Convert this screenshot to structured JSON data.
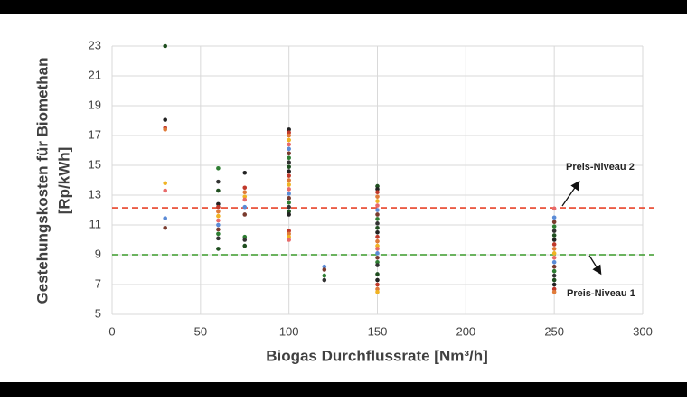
{
  "chart_data": {
    "type": "scatter",
    "x_label": "Biogas Durchflussrate [Nm³/h]",
    "y_label": [
      "Gestehungskosten für Biomethan",
      "[Rp/kWh]"
    ],
    "xlim": [
      0,
      300
    ],
    "xticks": [
      0,
      50,
      100,
      150,
      200,
      250,
      300
    ],
    "ylim": [
      5,
      23
    ],
    "yticks": [
      5,
      7,
      9,
      11,
      13,
      15,
      17,
      19,
      21,
      23
    ],
    "grid": true,
    "point_colors": [
      "#1f4e1f",
      "#222222",
      "#c0392b",
      "#e07b39",
      "#f0b323",
      "#e86a6a",
      "#5b8bd6",
      "#7a3b2e",
      "#2e7d32",
      "#333333"
    ],
    "x": [
      30,
      30,
      30,
      30,
      30,
      30,
      30,
      30,
      60,
      60,
      60,
      60,
      60,
      60,
      60,
      60,
      60,
      60,
      60,
      60,
      60,
      75,
      75,
      75,
      75,
      75,
      75,
      75,
      75,
      75,
      75,
      100,
      100,
      100,
      100,
      100,
      100,
      100,
      100,
      100,
      100,
      100,
      100,
      100,
      100,
      100,
      100,
      100,
      100,
      100,
      100,
      100,
      100,
      100,
      100,
      100,
      120,
      120,
      120,
      120,
      150,
      150,
      150,
      150,
      150,
      150,
      150,
      150,
      150,
      150,
      150,
      150,
      150,
      150,
      150,
      150,
      150,
      150,
      150,
      150,
      150,
      150,
      150,
      150,
      150,
      250,
      250,
      250,
      250,
      250,
      250,
      250,
      250,
      250,
      250,
      250,
      250,
      250,
      250,
      250,
      250,
      250,
      250,
      250
    ],
    "y": [
      23,
      18.05,
      17.5,
      17.4,
      13.8,
      13.3,
      11.45,
      10.8,
      14.8,
      13.9,
      13.3,
      12.4,
      12.2,
      11.9,
      11.6,
      11.3,
      11,
      10.7,
      10.4,
      10.1,
      9.4,
      14.5,
      13.5,
      13.2,
      12.9,
      12.7,
      12.2,
      11.7,
      10.2,
      10,
      9.6,
      17.4,
      17.2,
      17,
      16.7,
      16.4,
      16.1,
      15.8,
      15.5,
      15.2,
      14.9,
      14.6,
      14.3,
      14,
      13.7,
      13.4,
      13.1,
      12.8,
      12.5,
      12.2,
      11.9,
      11.7,
      10.6,
      10.4,
      10.2,
      10,
      8.2,
      8,
      7.6,
      7.3,
      13.6,
      13.4,
      13.2,
      12.9,
      12.6,
      12.3,
      12,
      11.7,
      11.4,
      11.1,
      10.8,
      10.5,
      10.2,
      9.9,
      9.6,
      9.4,
      9.1,
      8.8,
      8.5,
      8.3,
      7.7,
      7.3,
      7,
      6.7,
      6.5,
      12.1,
      11.5,
      11.2,
      10.9,
      10.6,
      10.3,
      10,
      9.7,
      9.4,
      9.1,
      8.8,
      8.5,
      8.2,
      7.9,
      7.6,
      7.3,
      7,
      6.7,
      6.5
    ],
    "reference_lines": [
      {
        "value": 12.15,
        "color": "#e8442a"
      },
      {
        "value": 9.0,
        "color": "#3a9a2a"
      }
    ],
    "annotations": [
      "Preis-Niveau 2",
      "Preis-Niveau 1"
    ]
  }
}
